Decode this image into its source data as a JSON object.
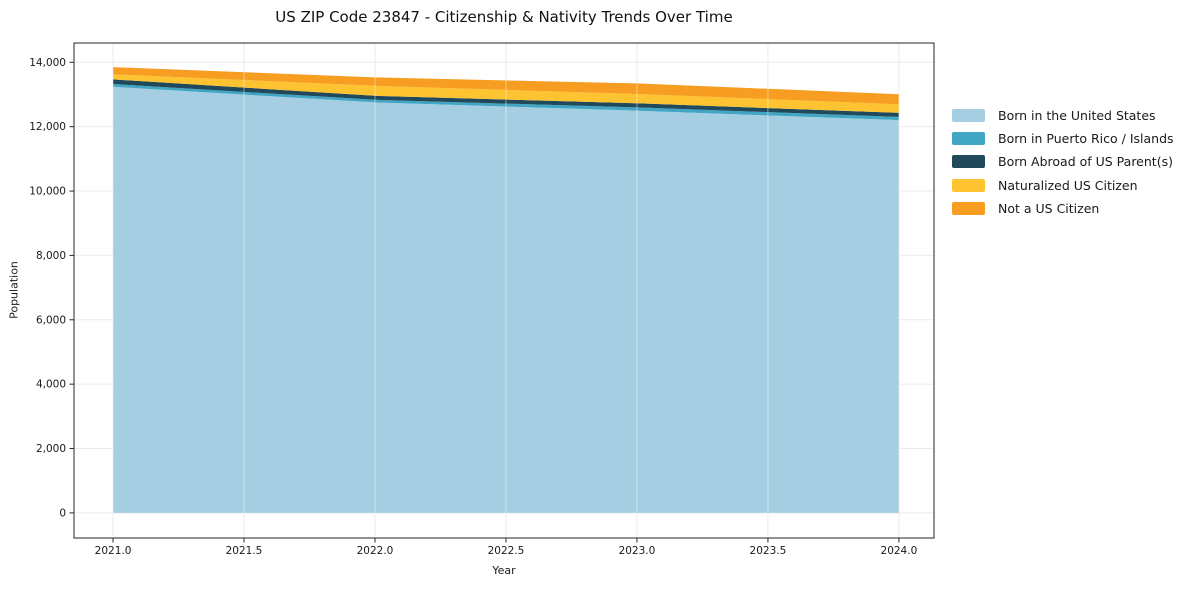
{
  "figure": {
    "background": "#ffffff",
    "text_color": "#1a1a1a",
    "spine_color": "#262626",
    "gridline_color": "#ebebeb"
  },
  "chart_data": {
    "type": "area",
    "stacked": true,
    "title": "US ZIP Code 23847 - Citizenship & Nativity Trends Over Time",
    "xlabel": "Year",
    "ylabel": "Population",
    "grid": true,
    "legend_position": "right-outside",
    "x": [
      2021,
      2022,
      2023,
      2024
    ],
    "xlim": [
      2020.851,
      2024.134
    ],
    "ylim": [
      -780,
      14600
    ],
    "x_ticks": [
      {
        "value": 2021.0,
        "label": "2021.0"
      },
      {
        "value": 2021.5,
        "label": "2021.5"
      },
      {
        "value": 2022.0,
        "label": "2022.0"
      },
      {
        "value": 2022.5,
        "label": "2022.5"
      },
      {
        "value": 2023.0,
        "label": "2023.0"
      },
      {
        "value": 2023.5,
        "label": "2023.5"
      },
      {
        "value": 2024.0,
        "label": "2024.0"
      }
    ],
    "y_ticks": [
      {
        "value": 0,
        "label": "0"
      },
      {
        "value": 2000,
        "label": "2,000"
      },
      {
        "value": 4000,
        "label": "4,000"
      },
      {
        "value": 6000,
        "label": "6,000"
      },
      {
        "value": 8000,
        "label": "8,000"
      },
      {
        "value": 10000,
        "label": "10,000"
      },
      {
        "value": 12000,
        "label": "12,000"
      },
      {
        "value": 14000,
        "label": "14,000"
      }
    ],
    "series": [
      {
        "name": "Born in the United States",
        "color": "#a6cee3",
        "values": [
          13240,
          12755,
          12495,
          12205
        ]
      },
      {
        "name": "Born in Puerto Rico / Islands",
        "color": "#41a6c4",
        "values": [
          85,
          80,
          105,
          100
        ]
      },
      {
        "name": "Born Abroad of US Parent(s)",
        "color": "#21495c",
        "values": [
          145,
          125,
          125,
          125
        ]
      },
      {
        "name": "Naturalized US Citizen",
        "color": "#fdc331",
        "values": [
          160,
          310,
          290,
          270
        ]
      },
      {
        "name": "Not a US Citizen",
        "color": "#f69d22",
        "values": [
          220,
          260,
          330,
          310
        ]
      }
    ],
    "totals": [
      13850,
      13530,
      13345,
      13010
    ]
  }
}
